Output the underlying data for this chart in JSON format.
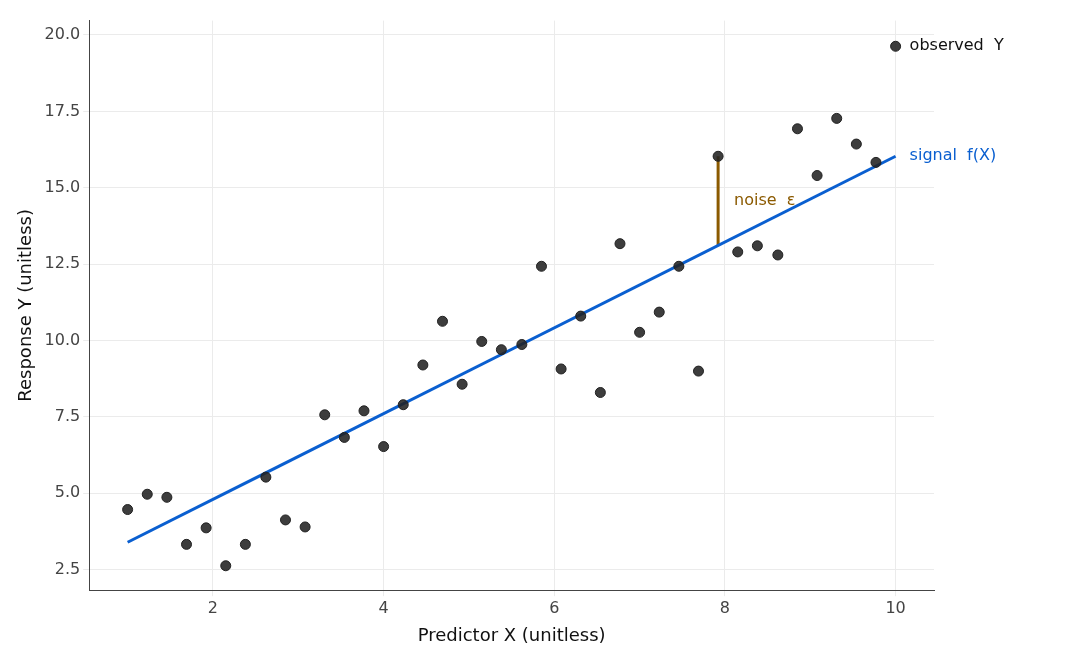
{
  "chart_data": {
    "type": "scatter",
    "xlabel": "Predictor X (unitless)",
    "ylabel": "Response Y (unitless)",
    "xlim": [
      0.55,
      10.45
    ],
    "ylim": [
      1.83,
      20.47
    ],
    "xticks": [
      2,
      4,
      6,
      8,
      10
    ],
    "yticks": [
      2.5,
      {
        "value": 5,
        "label": "5.0"
      },
      7.5,
      {
        "value": 10,
        "label": "10.0"
      },
      12.5,
      {
        "value": 15,
        "label": "15.0"
      },
      17.5,
      {
        "value": 20,
        "label": "20.0"
      }
    ],
    "grid": true,
    "legend": false,
    "series": [
      {
        "name": "observed  Y",
        "marker": "circle",
        "color": "#222222",
        "x": [
          1,
          1.23,
          1.46,
          1.69,
          1.92,
          2.15,
          2.38,
          2.62,
          2.85,
          3.08,
          3.31,
          3.54,
          3.77,
          4,
          4.23,
          4.46,
          4.69,
          4.92,
          5.15,
          5.38,
          5.62,
          5.85,
          6.08,
          6.31,
          6.54,
          6.77,
          7,
          7.23,
          7.46,
          7.69,
          7.92,
          8.15,
          8.38,
          8.62,
          8.85,
          9.08,
          9.31,
          9.54,
          9.77,
          10
        ],
        "values": [
          4.47,
          4.97,
          4.87,
          3.33,
          3.87,
          2.63,
          3.33,
          5.53,
          4.13,
          3.9,
          7.57,
          6.83,
          7.7,
          6.53,
          7.9,
          9.2,
          10.63,
          8.57,
          9.97,
          9.7,
          9.87,
          12.43,
          9.07,
          10.8,
          8.3,
          13.17,
          10.27,
          10.93,
          12.43,
          9.0,
          16.03,
          12.9,
          13.1,
          12.8,
          16.93,
          15.4,
          17.27,
          16.43,
          15.83,
          19.63
        ]
      },
      {
        "name": "signal  f(X)",
        "type": "line",
        "marker": "none",
        "color": "#0a5fd0",
        "x": [
          1,
          10
        ],
        "values": [
          3.4,
          16.03
        ]
      },
      {
        "name": "noise  ε",
        "type": "line",
        "marker": "none",
        "color": "#8b5a00",
        "x": [
          7.92,
          7.92
        ],
        "values": [
          13.1,
          16.03
        ]
      }
    ]
  }
}
